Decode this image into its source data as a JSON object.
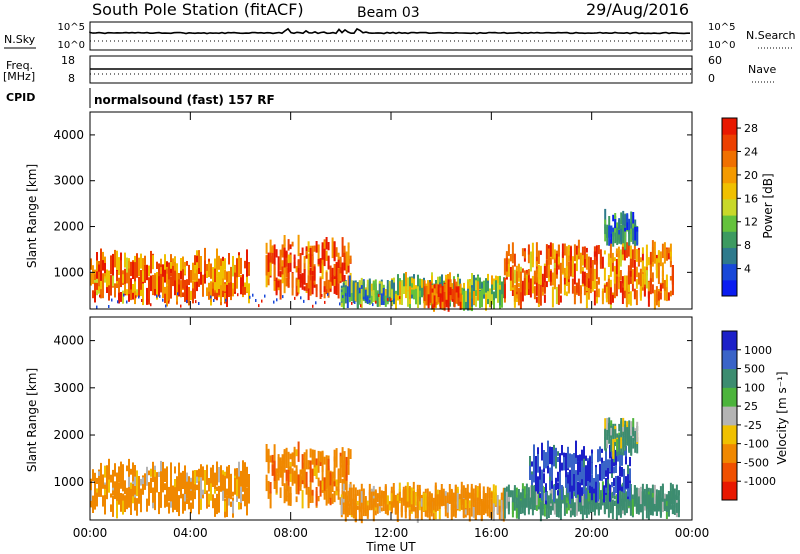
{
  "header": {
    "station": "South Pole Station (fitACF)",
    "beam": "Beam 03",
    "date": "29/Aug/2016"
  },
  "strips": {
    "nsky_label": "N.Sky",
    "nsearch_label": "N.Search",
    "freq_label": "Freq.",
    "freq_unit": "[MHz]",
    "nave_label": "Nave",
    "cpid_label": "CPID",
    "cpid_text": "normalsound (fast) 157 RF",
    "noise_ticks_left": [
      "10^5",
      "10^0"
    ],
    "noise_ticks_right": [
      "10^5",
      "10^0"
    ],
    "freq_ticks": [
      "18",
      "8"
    ],
    "nave_ticks": [
      "60",
      "0"
    ]
  },
  "chart_data": [
    {
      "type": "heatmap",
      "panel": "power",
      "ylabel": "Slant Range [km]",
      "yticks": [
        "1000",
        "2000",
        "3000",
        "4000"
      ],
      "ylim": [
        200,
        4500
      ],
      "xlim": [
        0,
        24
      ],
      "colorbar": {
        "label": "Power [dB]",
        "ticks": [
          "4",
          "8",
          "12",
          "16",
          "20",
          "24",
          "28"
        ],
        "colors": [
          "#0a1cf0",
          "#1848d8",
          "#2e7a8c",
          "#3c9a60",
          "#64c23c",
          "#c8d82a",
          "#f0c000",
          "#f49a00",
          "#f07000",
          "#ec4000",
          "#e81800"
        ]
      },
      "bands": [
        {
          "t0": 0.0,
          "t1": 6.3,
          "r0": 450,
          "r1": 1300,
          "power": 24
        },
        {
          "t0": 7.0,
          "t1": 10.4,
          "r0": 600,
          "r1": 1650,
          "power": 26
        },
        {
          "t0": 10.0,
          "t1": 12.0,
          "r0": 400,
          "r1": 700,
          "power": 12
        },
        {
          "t0": 12.0,
          "t1": 16.5,
          "r0": 350,
          "r1": 800,
          "power": 14
        },
        {
          "t0": 13.3,
          "t1": 14.8,
          "r0": 350,
          "r1": 650,
          "power": 28
        },
        {
          "t0": 16.5,
          "t1": 23.2,
          "r0": 400,
          "r1": 1500,
          "power": 24
        },
        {
          "t0": 20.5,
          "t1": 21.8,
          "r0": 1700,
          "r1": 2200,
          "power": 8
        }
      ]
    },
    {
      "type": "heatmap",
      "panel": "velocity",
      "ylabel": "Slant Range [km]",
      "yticks": [
        "1000",
        "2000",
        "3000",
        "4000"
      ],
      "ylim": [
        200,
        4500
      ],
      "xlim": [
        0,
        24
      ],
      "xlabel": "Time UT",
      "xticks": [
        "00:00",
        "04:00",
        "08:00",
        "12:00",
        "16:00",
        "20:00",
        "00:00"
      ],
      "colorbar": {
        "label": "Velocity [m s⁻¹]",
        "ticks": [
          "1000",
          "500",
          "100",
          "25",
          "-25",
          "-100",
          "-500",
          "-1000"
        ],
        "colors": [
          "#1c20c8",
          "#3a64c8",
          "#3c8c70",
          "#4cb43c",
          "#b4b4b4",
          "#f0c000",
          "#f08800",
          "#f05000",
          "#e81800"
        ]
      },
      "bands": [
        {
          "t0": 0.0,
          "t1": 6.3,
          "r0": 450,
          "r1": 1300,
          "velocity": -150
        },
        {
          "t0": 7.0,
          "t1": 10.4,
          "r0": 600,
          "r1": 1650,
          "velocity": -200
        },
        {
          "t0": 10.0,
          "t1": 16.5,
          "r0": 350,
          "r1": 800,
          "velocity": -150
        },
        {
          "t0": 16.5,
          "t1": 23.5,
          "r0": 400,
          "r1": 800,
          "velocity": 150
        },
        {
          "t0": 17.5,
          "t1": 21.5,
          "r0": 700,
          "r1": 1700,
          "velocity": 700
        },
        {
          "t0": 20.5,
          "t1": 21.8,
          "r0": 1700,
          "r1": 2200,
          "velocity": 100
        }
      ]
    }
  ]
}
